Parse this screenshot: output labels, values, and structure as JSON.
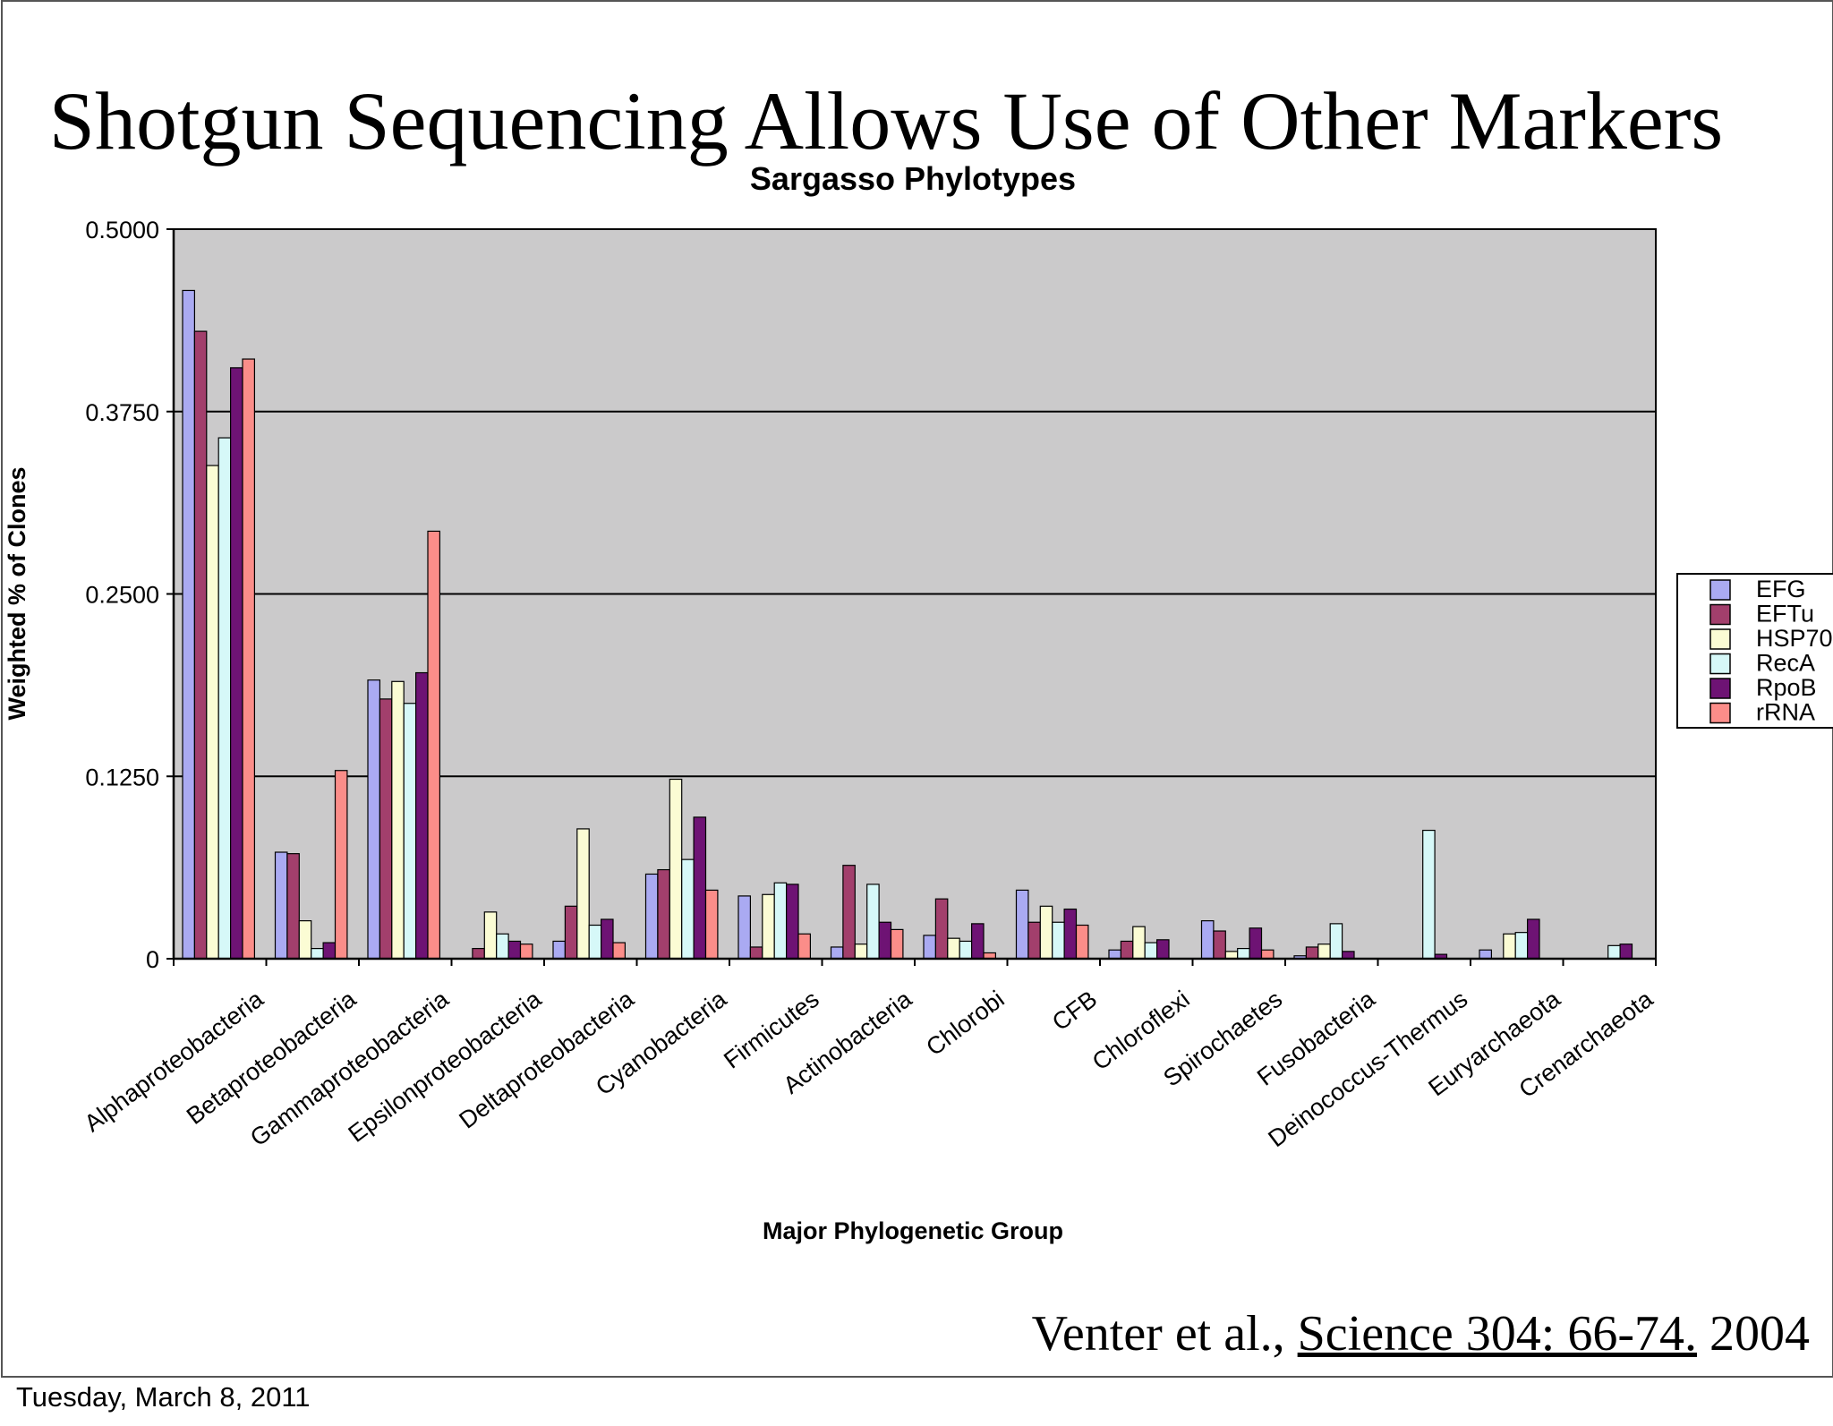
{
  "slide": {
    "title": "Shotgun Sequencing Allows Use of Other Markers",
    "citation_authors": "Venter et al., ",
    "citation_journal": "Science 304: 66-74.",
    "citation_year": " 2004",
    "date": "Tuesday, March 8, 2011"
  },
  "colors": {
    "plot_background": "#cbcacb",
    "EFG": "#aaaaf2",
    "EFTu": "#a23f6c",
    "HSP70": "#fbfcd4",
    "RecA": "#d6f8f8",
    "RpoB": "#6e1374",
    "rRNA": "#fb8d89"
  },
  "chart_data": {
    "type": "bar",
    "title": "Sargasso Phylotypes",
    "xlabel": "Major Phylogenetic Group",
    "ylabel": "Weighted % of Clones",
    "ylim": [
      0,
      0.5
    ],
    "yticks": [
      "0",
      "0.1250",
      "0.2500",
      "0.3750",
      "0.5000"
    ],
    "grid": true,
    "legend_position": "right",
    "categories": [
      "Alphaproteobacteria",
      "Betaproteobacteria",
      "Gammaproteobacteria",
      "Epsilonproteobacteria",
      "Deltaproteobacteria",
      "Cyanobacteria",
      "Firmicutes",
      "Actinobacteria",
      "Chlorobi",
      "CFB",
      "Chloroflexi",
      "Spirochaetes",
      "Fusobacteria",
      "Deinococcus-Thermus",
      "Euryarchaeota",
      "Crenarchaeota"
    ],
    "series": [
      {
        "name": "EFG",
        "values": [
          0.458,
          0.073,
          0.191,
          0.0,
          0.012,
          0.058,
          0.043,
          0.008,
          0.016,
          0.047,
          0.006,
          0.026,
          0.002,
          0.0,
          0.006,
          0.0
        ]
      },
      {
        "name": "EFTu",
        "values": [
          0.43,
          0.072,
          0.178,
          0.007,
          0.036,
          0.061,
          0.008,
          0.064,
          0.041,
          0.025,
          0.012,
          0.019,
          0.008,
          0.0,
          0.0,
          0.0
        ]
      },
      {
        "name": "HSP70",
        "values": [
          0.338,
          0.026,
          0.19,
          0.032,
          0.089,
          0.123,
          0.044,
          0.01,
          0.014,
          0.036,
          0.022,
          0.005,
          0.01,
          0.0,
          0.017,
          0.0
        ]
      },
      {
        "name": "RecA",
        "values": [
          0.357,
          0.007,
          0.175,
          0.017,
          0.023,
          0.068,
          0.052,
          0.051,
          0.012,
          0.025,
          0.011,
          0.007,
          0.024,
          0.088,
          0.018,
          0.009
        ]
      },
      {
        "name": "RpoB",
        "values": [
          0.405,
          0.011,
          0.196,
          0.012,
          0.027,
          0.097,
          0.051,
          0.025,
          0.024,
          0.034,
          0.013,
          0.021,
          0.005,
          0.003,
          0.027,
          0.01
        ]
      },
      {
        "name": "rRNA",
        "values": [
          0.411,
          0.129,
          0.293,
          0.01,
          0.011,
          0.047,
          0.017,
          0.02,
          0.004,
          0.023,
          0.0,
          0.006,
          0.0,
          0.0,
          0.0,
          0.0
        ]
      }
    ]
  }
}
